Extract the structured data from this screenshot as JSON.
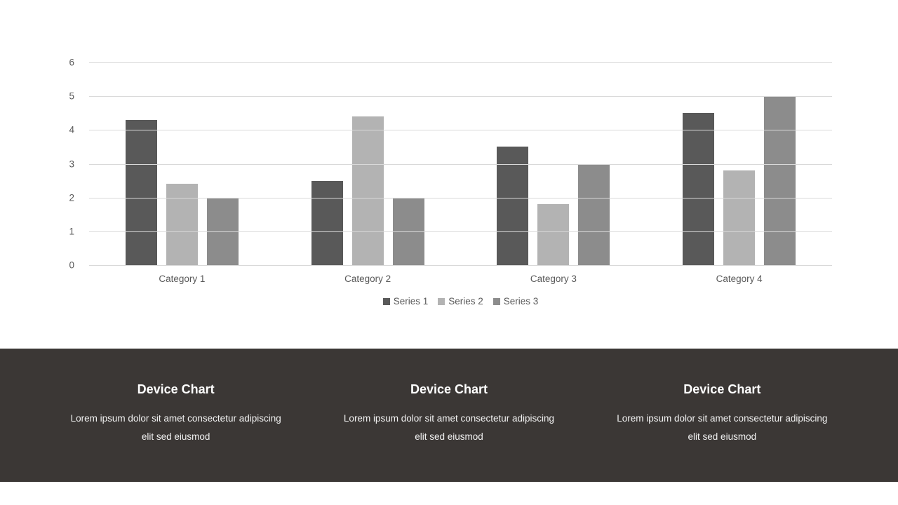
{
  "chart_data": {
    "type": "bar",
    "title": "",
    "xlabel": "",
    "ylabel": "",
    "categories": [
      "Category 1",
      "Category 2",
      "Category 3",
      "Category 4"
    ],
    "series": [
      {
        "name": "Series 1",
        "color": "#595959",
        "values": [
          4.3,
          2.5,
          3.5,
          4.5
        ]
      },
      {
        "name": "Series 2",
        "color": "#b3b3b3",
        "values": [
          2.4,
          4.4,
          1.8,
          2.8
        ]
      },
      {
        "name": "Series 3",
        "color": "#8c8c8c",
        "values": [
          2.0,
          2.0,
          3.0,
          5.0
        ]
      }
    ],
    "ylim": [
      0,
      6
    ],
    "yticks": [
      0,
      1,
      2,
      3,
      4,
      5,
      6
    ],
    "grid": true,
    "gridline_color": "#d9d9d9",
    "axis_text_color": "#595959",
    "legend_position": "bottom"
  },
  "footer": {
    "background": "#3b3735",
    "columns": [
      {
        "title": "Device Chart",
        "line1": "Lorem ipsum dolor sit amet consectetur adipiscing",
        "line2": "elit sed eiusmod"
      },
      {
        "title": "Device Chart",
        "line1": "Lorem ipsum dolor sit amet consectetur adipiscing",
        "line2": "elit sed eiusmod"
      },
      {
        "title": "Device Chart",
        "line1": "Lorem ipsum dolor sit amet consectetur adipiscing",
        "line2": "elit sed eiusmod"
      }
    ]
  }
}
